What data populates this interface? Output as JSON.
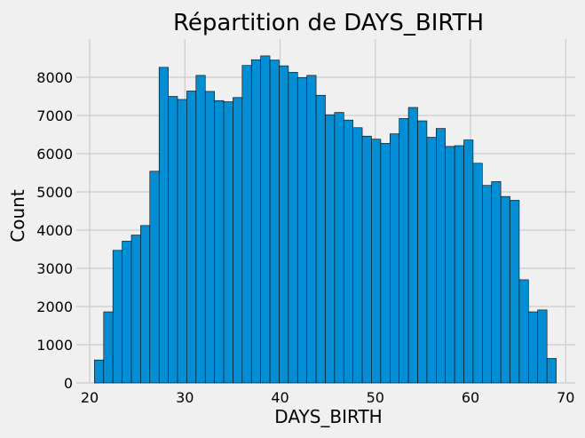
{
  "chart_data": {
    "type": "bar",
    "title": "Répartition de DAYS_BIRTH",
    "xlabel": "DAYS_BIRTH",
    "ylabel": "Count",
    "xlim": [
      18.6,
      71.0
    ],
    "ylim": [
      0,
      9000
    ],
    "xticks": [
      20,
      30,
      40,
      50,
      60,
      70
    ],
    "yticks": [
      0,
      1000,
      2000,
      3000,
      4000,
      5000,
      6000,
      7000,
      8000
    ],
    "grid": true,
    "bin_start": 20.5,
    "bin_width": 0.97,
    "bar_color": "#008fd5",
    "edge_color": "#000000",
    "values": [
      600,
      1860,
      3470,
      3710,
      3870,
      4120,
      5540,
      8260,
      7500,
      7420,
      7640,
      8050,
      7630,
      7390,
      7360,
      7470,
      8310,
      8460,
      8560,
      8450,
      8300,
      8130,
      7990,
      8050,
      7530,
      7020,
      7080,
      6880,
      6680,
      6460,
      6380,
      6270,
      6520,
      6920,
      7210,
      6860,
      6430,
      6660,
      6190,
      6210,
      6360,
      5750,
      5170,
      5270,
      4880,
      4780,
      2700,
      1860,
      1910,
      640
    ]
  }
}
